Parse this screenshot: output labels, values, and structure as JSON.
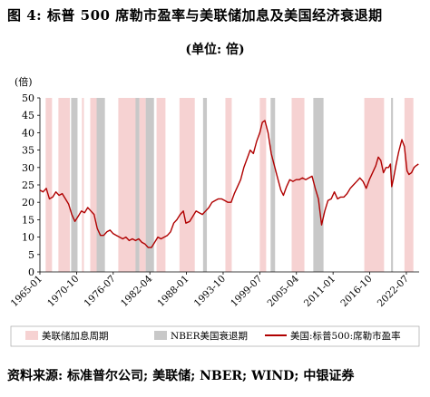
{
  "figure": {
    "title": "图 4: 标普 500 席勒市盈率与美联储加息及美国经济衰退期",
    "subtitle": "(单位: 倍)",
    "source": "资料来源: 标准普尔公司; 美联储; NBER; WIND; 中银证券"
  },
  "colors": {
    "line": "#b00000",
    "hike_band": "#f6d2d2",
    "recession_band": "#c8c8c8"
  },
  "chart_data": {
    "type": "line",
    "unit_label": "(倍)",
    "ylim": [
      0,
      50
    ],
    "yticks": [
      0,
      5,
      10,
      15,
      20,
      25,
      30,
      35,
      40,
      45,
      50
    ],
    "xlim": [
      1965.0,
      2024.5
    ],
    "xticks": [
      {
        "label": "1965-01",
        "x": 1965.0
      },
      {
        "label": "1970-10",
        "x": 1970.75
      },
      {
        "label": "1976-07",
        "x": 1976.5
      },
      {
        "label": "1982-04",
        "x": 1982.25
      },
      {
        "label": "1988-01",
        "x": 1988.0
      },
      {
        "label": "1993-10",
        "x": 1993.75
      },
      {
        "label": "1999-07",
        "x": 1999.5
      },
      {
        "label": "2005-04",
        "x": 2005.25
      },
      {
        "label": "2011-01",
        "x": 2011.0
      },
      {
        "label": "2016-10",
        "x": 2016.75
      },
      {
        "label": "2022-07",
        "x": 2022.5
      }
    ],
    "grid": false,
    "legend_position": "bottom",
    "legend": [
      {
        "label": "美联储加息周期",
        "kind": "hike_band"
      },
      {
        "label": "NBER美国衰退期",
        "kind": "recession_band"
      },
      {
        "label": "美国:标普500:席勒市盈率",
        "kind": "line"
      }
    ],
    "hike_periods": [
      [
        1965.9,
        1966.9
      ],
      [
        1967.9,
        1969.7
      ],
      [
        1971.6,
        1971.9
      ],
      [
        1972.9,
        1974.6
      ],
      [
        1977.3,
        1980.3
      ],
      [
        1980.6,
        1981.6
      ],
      [
        1983.3,
        1984.7
      ],
      [
        1986.9,
        1989.3
      ],
      [
        1994.1,
        1995.1
      ],
      [
        1999.5,
        2000.5
      ],
      [
        2004.5,
        2006.5
      ],
      [
        2015.9,
        2019.0
      ],
      [
        2022.2,
        2023.6
      ]
    ],
    "recession_periods": [
      [
        1969.9,
        1970.9
      ],
      [
        1973.9,
        1975.2
      ],
      [
        1980.0,
        1980.6
      ],
      [
        1981.6,
        1982.9
      ],
      [
        1990.6,
        1991.2
      ],
      [
        2001.2,
        2001.9
      ],
      [
        2007.9,
        2009.5
      ],
      [
        2020.1,
        2020.4
      ]
    ],
    "series": [
      {
        "x": [
          1965.0,
          1965.5,
          1966.0,
          1966.5,
          1967.0,
          1967.5,
          1968.0,
          1968.5,
          1969.0,
          1969.5,
          1970.0,
          1970.5,
          1971.0,
          1971.5,
          1972.0,
          1972.5,
          1973.0,
          1973.5,
          1974.0,
          1974.5,
          1975.0,
          1975.5,
          1976.0,
          1976.5,
          1977.0,
          1977.5,
          1978.0,
          1978.5,
          1979.0,
          1979.5,
          1980.0,
          1980.5,
          1981.0,
          1981.5,
          1982.0,
          1982.5,
          1983.0,
          1983.5,
          1984.0,
          1984.5,
          1985.0,
          1985.5,
          1986.0,
          1986.5,
          1987.0,
          1987.5,
          1987.9,
          1988.5,
          1989.0,
          1989.5,
          1990.0,
          1990.5,
          1991.0,
          1991.5,
          1992.0,
          1992.5,
          1993.0,
          1993.5,
          1994.0,
          1994.5,
          1995.0,
          1995.5,
          1996.0,
          1996.5,
          1997.0,
          1997.5,
          1998.0,
          1998.5,
          1999.0,
          1999.5,
          1999.9,
          2000.3,
          2000.8,
          2001.3,
          2001.8,
          2002.3,
          2002.8,
          2003.2,
          2003.7,
          2004.2,
          2004.7,
          2005.2,
          2005.7,
          2006.2,
          2006.7,
          2007.2,
          2007.7,
          2008.2,
          2008.7,
          2009.2,
          2009.7,
          2010.2,
          2010.7,
          2011.2,
          2011.7,
          2012.2,
          2012.7,
          2013.2,
          2013.7,
          2014.2,
          2014.7,
          2015.2,
          2015.7,
          2016.2,
          2016.7,
          2017.2,
          2017.7,
          2018.1,
          2018.5,
          2018.9,
          2019.3,
          2019.7,
          2020.0,
          2020.2,
          2020.5,
          2020.9,
          2021.3,
          2021.8,
          2022.2,
          2022.6,
          2022.9,
          2023.3,
          2023.7,
          2024.0,
          2024.4
        ],
        "y": [
          23.5,
          23.0,
          24.0,
          21.0,
          21.5,
          23.0,
          22.0,
          22.5,
          21.0,
          19.5,
          16.5,
          14.5,
          16.0,
          17.5,
          17.0,
          18.5,
          17.5,
          16.5,
          12.5,
          10.5,
          10.5,
          11.5,
          12.0,
          11.0,
          10.5,
          10.0,
          9.5,
          10.0,
          9.0,
          9.5,
          9.0,
          9.5,
          8.5,
          8.0,
          7.0,
          7.0,
          8.5,
          10.0,
          9.5,
          10.0,
          10.5,
          11.5,
          14.0,
          15.0,
          16.5,
          17.5,
          14.0,
          14.5,
          16.0,
          17.5,
          17.0,
          16.5,
          17.5,
          18.5,
          20.0,
          20.5,
          21.0,
          21.0,
          20.5,
          20.0,
          20.0,
          22.5,
          24.5,
          26.5,
          30.0,
          32.5,
          35.0,
          34.0,
          37.5,
          40.0,
          43.0,
          43.5,
          40.0,
          34.0,
          30.5,
          27.0,
          23.5,
          22.0,
          24.5,
          26.5,
          26.0,
          26.5,
          26.5,
          27.0,
          26.5,
          27.0,
          27.5,
          24.0,
          21.0,
          13.5,
          17.5,
          20.5,
          21.0,
          23.0,
          21.0,
          21.5,
          21.5,
          22.5,
          24.0,
          25.0,
          26.0,
          27.0,
          26.0,
          24.0,
          26.5,
          28.5,
          30.5,
          33.0,
          32.0,
          28.5,
          30.0,
          30.0,
          31.0,
          24.5,
          27.0,
          31.0,
          34.5,
          38.0,
          36.0,
          29.0,
          28.0,
          28.5,
          30.0,
          30.5,
          31.0
        ]
      }
    ]
  }
}
